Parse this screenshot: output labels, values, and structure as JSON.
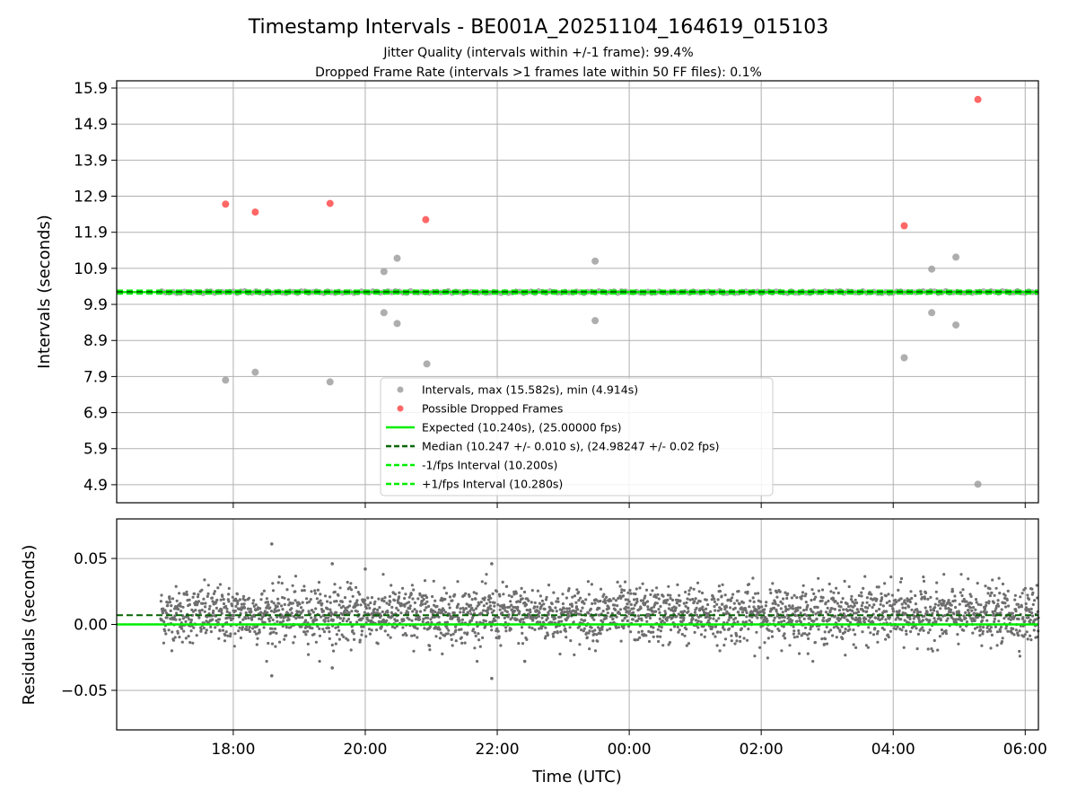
{
  "title": "Timestamp Intervals - BE001A_20251104_164619_015103",
  "subtitle_1": "Jitter Quality (intervals within +/-1 frame): 99.4%",
  "subtitle_2": "Dropped Frame Rate (intervals >1 frames late within 50 FF files): 0.1%",
  "colors": {
    "intervals": "#a0a0a0",
    "dropped": "#ff4c4c",
    "expected": "#00ee00",
    "median": "#006400",
    "fps_bounds": "#00ee00",
    "residuals": "#6e6e6e",
    "grid": "#b0b0b0"
  },
  "chart_data": [
    {
      "type": "scatter",
      "ylabel": "Intervals (seconds)",
      "x_axis": "time",
      "xlim": [
        "2025-11-04 16:14",
        "2025-11-05 06:12"
      ],
      "ylim": [
        4.4,
        16.1
      ],
      "yticks": [
        "15.9",
        "14.9",
        "13.9",
        "12.9",
        "11.9",
        "10.9",
        "9.9",
        "8.9",
        "7.9",
        "6.9",
        "5.9",
        "4.9"
      ],
      "grid": true,
      "legend_position": "lower-center",
      "legend": [
        {
          "label": "Intervals, max (15.582s), min (4.914s)",
          "marker": "dot",
          "color": "#a0a0a0"
        },
        {
          "label": "Possible Dropped Frames",
          "marker": "dot",
          "color": "#ff4c4c"
        },
        {
          "label": "Expected (10.240s), (25.00000 fps)",
          "marker": "line",
          "color": "#00ee00"
        },
        {
          "label": "Median (10.247 +/- 0.010 s), (24.98247 +/- 0.02 fps)",
          "marker": "dash",
          "color": "#006400"
        },
        {
          "label": "-1/fps Interval (10.200s)",
          "marker": "dash",
          "color": "#00ee00"
        },
        {
          "label": "+1/fps Interval (10.280s)",
          "marker": "dash",
          "color": "#00ee00"
        }
      ],
      "reference_lines": {
        "expected": 10.24,
        "median": 10.247,
        "minus_fps": 10.2,
        "plus_fps": 10.28
      },
      "series": [
        {
          "name": "Intervals, max (15.582s), min (4.914s)",
          "points": [
            [
              "2025-11-04 17:53",
              7.8
            ],
            [
              "2025-11-04 18:20",
              8.02
            ],
            [
              "2025-11-04 19:28",
              7.75
            ],
            [
              "2025-11-04 20:17",
              10.81
            ],
            [
              "2025-11-04 20:17",
              9.67
            ],
            [
              "2025-11-04 20:29",
              11.18
            ],
            [
              "2025-11-04 20:29",
              9.37
            ],
            [
              "2025-11-04 20:56",
              8.25
            ],
            [
              "2025-11-04 23:29",
              11.1
            ],
            [
              "2025-11-04 23:29",
              9.45
            ],
            [
              "2025-11-05 04:10",
              8.42
            ],
            [
              "2025-11-05 04:35",
              10.88
            ],
            [
              "2025-11-05 04:35",
              9.67
            ],
            [
              "2025-11-05 04:57",
              11.21
            ],
            [
              "2025-11-05 04:57",
              9.33
            ],
            [
              "2025-11-05 05:17",
              4.914
            ]
          ],
          "baseline": {
            "x_start": "2025-11-04 16:55",
            "x_end": "2025-11-05 06:12",
            "value": 10.24
          }
        },
        {
          "name": "Possible Dropped Frames",
          "points": [
            [
              "2025-11-04 17:53",
              12.68
            ],
            [
              "2025-11-04 18:20",
              12.46
            ],
            [
              "2025-11-04 19:28",
              12.7
            ],
            [
              "2025-11-04 20:55",
              12.25
            ],
            [
              "2025-11-05 04:10",
              12.08
            ],
            [
              "2025-11-05 05:17",
              15.582
            ]
          ]
        }
      ]
    },
    {
      "type": "scatter",
      "ylabel": "Residuals (seconds)",
      "xlabel": "Time (UTC)",
      "x_axis": "time",
      "xlim": [
        "2025-11-04 16:14",
        "2025-11-05 06:12"
      ],
      "ylim": [
        -0.08,
        0.08
      ],
      "yticks": [
        "0.05",
        "0.00",
        "−0.05"
      ],
      "xticks": [
        "18:00",
        "20:00",
        "22:00",
        "00:00",
        "02:00",
        "04:00",
        "06:00"
      ],
      "grid": true,
      "reference_lines": {
        "expected": 0.0,
        "median": 0.007
      },
      "series": [
        {
          "name": "Residuals",
          "x_range": [
            "2025-11-04 16:54",
            "2025-11-05 06:12"
          ],
          "count": 2900,
          "center": 0.0075,
          "spread": 0.0105,
          "outliers": [
            [
              "2025-11-04 18:35",
              0.061
            ],
            [
              "2025-11-04 19:30",
              0.046
            ],
            [
              "2025-11-04 20:00",
              0.042
            ],
            [
              "2025-11-04 21:55",
              0.046
            ],
            [
              "2025-11-04 18:35",
              -0.039
            ],
            [
              "2025-11-04 19:30",
              -0.033
            ],
            [
              "2025-11-04 21:55",
              -0.041
            ],
            [
              "2025-11-04 22:25",
              -0.028
            ]
          ]
        }
      ]
    }
  ]
}
